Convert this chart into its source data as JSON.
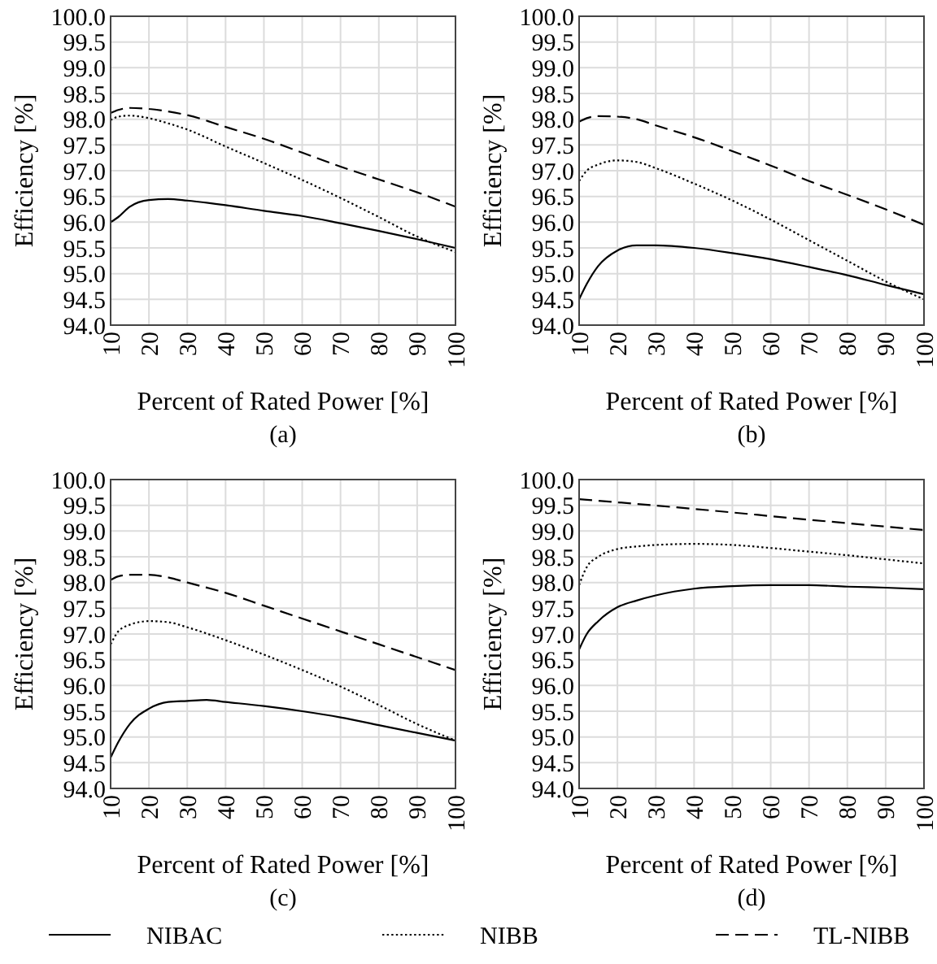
{
  "chart_data": [
    {
      "type": "line",
      "xlabel": "Percent of Rated Power [%]",
      "ylabel": "Efficiency [%]",
      "annotations": [
        "(a)"
      ],
      "xlim": [
        10,
        100
      ],
      "xticks": [
        10,
        20,
        30,
        40,
        50,
        60,
        70,
        80,
        90,
        100
      ],
      "ylim": [
        94,
        100
      ],
      "yticks": [
        {
          "value": 94,
          "label": "94.0"
        },
        {
          "value": 94.5,
          "label": "94.5"
        },
        {
          "value": 95,
          "label": "95.0"
        },
        {
          "value": 95.5,
          "label": "95.5"
        },
        {
          "value": 96,
          "label": "96.0"
        },
        {
          "value": 96.5,
          "label": "96.5"
        },
        {
          "value": 97,
          "label": "97.0"
        },
        {
          "value": 97.5,
          "label": "97.5"
        },
        {
          "value": 98,
          "label": "98.0"
        },
        {
          "value": 98.5,
          "label": "98.5"
        },
        {
          "value": 99,
          "label": "99.0"
        },
        {
          "value": 99.5,
          "label": "99.5"
        },
        {
          "value": 100,
          "label": "100.0"
        }
      ],
      "grid": true,
      "legend": "bottom",
      "series": [
        {
          "name": "NIBAC",
          "color": "#000000",
          "line_style": "solid",
          "x": [
            10,
            12,
            15,
            20,
            25,
            30,
            40,
            50,
            60,
            70,
            80,
            90,
            100
          ],
          "values": [
            96.0,
            96.1,
            96.3,
            96.43,
            96.45,
            96.42,
            96.33,
            96.22,
            96.12,
            95.98,
            95.83,
            95.67,
            95.5
          ]
        },
        {
          "name": "NIBB",
          "color": "#000000",
          "line_style": "dotted",
          "x": [
            10,
            12,
            15,
            20,
            25,
            30,
            40,
            50,
            60,
            70,
            80,
            90,
            100
          ],
          "values": [
            97.98,
            98.05,
            98.07,
            98.02,
            97.92,
            97.8,
            97.47,
            97.15,
            96.82,
            96.47,
            96.1,
            95.72,
            95.42
          ]
        },
        {
          "name": "TL-NIBB",
          "color": "#000000",
          "line_style": "dashed",
          "x": [
            10,
            12,
            15,
            20,
            25,
            30,
            40,
            50,
            60,
            70,
            80,
            90,
            100
          ],
          "values": [
            98.12,
            98.18,
            98.22,
            98.2,
            98.15,
            98.08,
            97.85,
            97.62,
            97.35,
            97.08,
            96.83,
            96.58,
            96.3
          ]
        }
      ]
    },
    {
      "type": "line",
      "xlabel": "Percent of Rated Power [%]",
      "ylabel": "Efficiency [%]",
      "annotations": [
        "(b)"
      ],
      "xlim": [
        10,
        100
      ],
      "xticks": [
        10,
        20,
        30,
        40,
        50,
        60,
        70,
        80,
        90,
        100
      ],
      "ylim": [
        94,
        100
      ],
      "yticks": [
        {
          "value": 94,
          "label": "94.0"
        },
        {
          "value": 94.5,
          "label": "94.5"
        },
        {
          "value": 95,
          "label": "95.0"
        },
        {
          "value": 95.5,
          "label": "95.5"
        },
        {
          "value": 96,
          "label": "96.0"
        },
        {
          "value": 96.5,
          "label": "96.5"
        },
        {
          "value": 97,
          "label": "97.0"
        },
        {
          "value": 97.5,
          "label": "97.5"
        },
        {
          "value": 98,
          "label": "98.0"
        },
        {
          "value": 98.5,
          "label": "98.5"
        },
        {
          "value": 99,
          "label": "99.0"
        },
        {
          "value": 99.5,
          "label": "99.5"
        },
        {
          "value": 100,
          "label": "100.0"
        }
      ],
      "grid": true,
      "series": [
        {
          "color": "#000000",
          "line_style": "solid",
          "x": [
            10,
            12,
            15,
            20,
            25,
            30,
            40,
            50,
            60,
            70,
            80,
            90,
            100
          ],
          "values": [
            94.5,
            94.8,
            95.15,
            95.45,
            95.55,
            95.55,
            95.5,
            95.4,
            95.28,
            95.13,
            94.97,
            94.78,
            94.6
          ]
        },
        {
          "color": "#000000",
          "line_style": "dotted",
          "x": [
            10,
            12,
            15,
            20,
            25,
            30,
            40,
            50,
            60,
            70,
            80,
            90,
            100
          ],
          "values": [
            96.8,
            97.0,
            97.12,
            97.2,
            97.17,
            97.05,
            96.75,
            96.42,
            96.05,
            95.65,
            95.25,
            94.85,
            94.5
          ]
        },
        {
          "color": "#000000",
          "line_style": "dashed",
          "x": [
            10,
            12,
            15,
            20,
            25,
            30,
            40,
            50,
            60,
            70,
            80,
            90,
            100
          ],
          "values": [
            97.95,
            98.02,
            98.06,
            98.05,
            98.0,
            97.88,
            97.65,
            97.38,
            97.1,
            96.8,
            96.53,
            96.25,
            95.95
          ]
        }
      ]
    },
    {
      "type": "line",
      "xlabel": "Percent of Rated Power [%]",
      "ylabel": "Efficiency [%]",
      "annotations": [
        "(c)"
      ],
      "xlim": [
        10,
        100
      ],
      "xticks": [
        10,
        20,
        30,
        40,
        50,
        60,
        70,
        80,
        90,
        100
      ],
      "ylim": [
        94,
        100
      ],
      "yticks": [
        {
          "value": 94,
          "label": "94.0"
        },
        {
          "value": 94.5,
          "label": "94.5"
        },
        {
          "value": 95,
          "label": "95.0"
        },
        {
          "value": 95.5,
          "label": "95.5"
        },
        {
          "value": 96,
          "label": "96.0"
        },
        {
          "value": 96.5,
          "label": "96.5"
        },
        {
          "value": 97,
          "label": "97.0"
        },
        {
          "value": 97.5,
          "label": "97.5"
        },
        {
          "value": 98,
          "label": "98.0"
        },
        {
          "value": 98.5,
          "label": "98.5"
        },
        {
          "value": 99,
          "label": "99.0"
        },
        {
          "value": 99.5,
          "label": "99.5"
        },
        {
          "value": 100,
          "label": "100.0"
        }
      ],
      "grid": true,
      "series": [
        {
          "color": "#000000",
          "line_style": "solid",
          "x": [
            10,
            12,
            15,
            20,
            25,
            30,
            35,
            40,
            50,
            60,
            70,
            80,
            90,
            100
          ],
          "values": [
            94.6,
            94.9,
            95.25,
            95.55,
            95.68,
            95.7,
            95.72,
            95.68,
            95.6,
            95.5,
            95.38,
            95.23,
            95.08,
            94.93
          ]
        },
        {
          "color": "#000000",
          "line_style": "dotted",
          "x": [
            10,
            12,
            15,
            20,
            25,
            30,
            40,
            50,
            60,
            70,
            80,
            90,
            100
          ],
          "values": [
            96.8,
            97.05,
            97.18,
            97.25,
            97.23,
            97.13,
            96.88,
            96.6,
            96.3,
            95.98,
            95.62,
            95.25,
            94.93
          ]
        },
        {
          "color": "#000000",
          "line_style": "dashed",
          "x": [
            10,
            12,
            15,
            20,
            25,
            30,
            40,
            50,
            60,
            70,
            80,
            90,
            100
          ],
          "values": [
            98.05,
            98.12,
            98.15,
            98.15,
            98.1,
            98.0,
            97.8,
            97.55,
            97.3,
            97.05,
            96.8,
            96.55,
            96.3
          ]
        }
      ]
    },
    {
      "type": "line",
      "xlabel": "Percent of Rated Power [%]",
      "ylabel": "Efficiency [%]",
      "annotations": [
        "(d)"
      ],
      "xlim": [
        10,
        100
      ],
      "xticks": [
        10,
        20,
        30,
        40,
        50,
        60,
        70,
        80,
        90,
        100
      ],
      "ylim": [
        94,
        100
      ],
      "yticks": [
        {
          "value": 94,
          "label": "94.0"
        },
        {
          "value": 94.5,
          "label": "94.5"
        },
        {
          "value": 95,
          "label": "95.0"
        },
        {
          "value": 95.5,
          "label": "95.5"
        },
        {
          "value": 96,
          "label": "96.0"
        },
        {
          "value": 96.5,
          "label": "96.5"
        },
        {
          "value": 97,
          "label": "97.0"
        },
        {
          "value": 97.5,
          "label": "97.5"
        },
        {
          "value": 98,
          "label": "98.0"
        },
        {
          "value": 98.5,
          "label": "98.5"
        },
        {
          "value": 99,
          "label": "99.0"
        },
        {
          "value": 99.5,
          "label": "99.5"
        },
        {
          "value": 100,
          "label": "100.0"
        }
      ],
      "grid": true,
      "series": [
        {
          "color": "#000000",
          "line_style": "solid",
          "x": [
            10,
            12,
            15,
            20,
            25,
            30,
            40,
            50,
            60,
            70,
            80,
            90,
            100
          ],
          "values": [
            96.7,
            97.0,
            97.25,
            97.52,
            97.65,
            97.75,
            97.88,
            97.93,
            97.95,
            97.95,
            97.92,
            97.9,
            97.87
          ]
        },
        {
          "color": "#000000",
          "line_style": "dotted",
          "x": [
            10,
            12,
            15,
            20,
            25,
            30,
            40,
            50,
            60,
            70,
            80,
            90,
            100
          ],
          "values": [
            97.95,
            98.3,
            98.5,
            98.65,
            98.7,
            98.73,
            98.75,
            98.73,
            98.67,
            98.6,
            98.53,
            98.45,
            98.37
          ]
        },
        {
          "color": "#000000",
          "line_style": "dashed",
          "x": [
            10,
            40,
            70,
            100
          ],
          "values": [
            99.62,
            99.43,
            99.22,
            99.02
          ]
        }
      ]
    }
  ]
}
